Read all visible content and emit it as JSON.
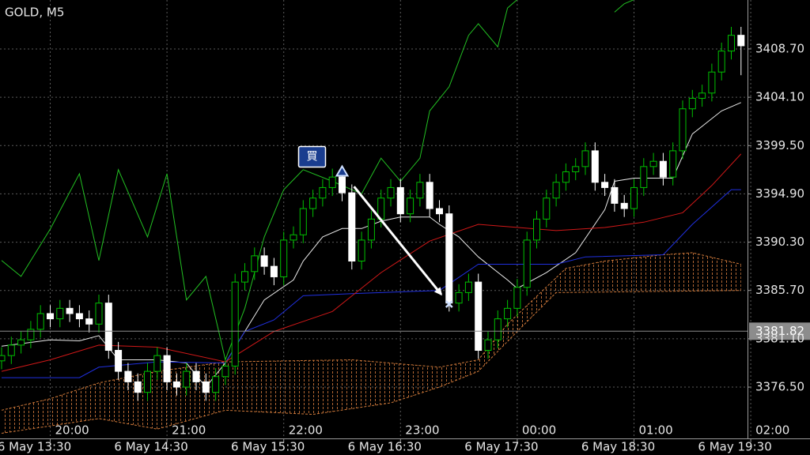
{
  "chart_data": {
    "type": "candlestick",
    "title": "GOLD, M5",
    "up_color": "#00c000",
    "down_color": "#ffffff",
    "background": "#000000",
    "grid": true,
    "ylim": [
      3372.14,
      3413.36
    ],
    "yticks": [
      {
        "value": 3408.7,
        "label": "3408.70"
      },
      {
        "value": 3404.1,
        "label": "3404.10"
      },
      {
        "value": 3399.5,
        "label": "3399.50"
      },
      {
        "value": 3394.9,
        "label": "3394.90"
      },
      {
        "value": 3390.3,
        "label": "3390.30"
      },
      {
        "value": 3385.7,
        "label": "3385.70"
      },
      {
        "value": 3381.1,
        "label": "3381.10"
      },
      {
        "value": 3376.5,
        "label": "3376.50"
      }
    ],
    "xlim": [
      0,
      76
    ],
    "xticks": [
      {
        "value": 5,
        "time": "20:00",
        "date": "6 May 13:30"
      },
      {
        "value": 17,
        "time": "21:00",
        "date": "6 May 14:30"
      },
      {
        "value": 29,
        "time": "22:00",
        "date": "6 May 15:30"
      },
      {
        "value": 41,
        "time": "23:00",
        "date": "6 May 16:30"
      },
      {
        "value": 53,
        "time": "00:00",
        "date": "6 May 17:30"
      },
      {
        "value": 65,
        "time": "01:00",
        "date": "6 May 18:30"
      },
      {
        "value": 77,
        "time": "02:00",
        "date": "6 May 19:30"
      }
    ],
    "open": [
      3379,
      3379.5,
      3380.5,
      3381,
      3382,
      3383.5,
      3383,
      3384,
      3383.5,
      3383,
      3382.5,
      3384.5,
      3380,
      3378,
      3377,
      3376,
      3378,
      3379.5,
      3377,
      3376.5,
      3378,
      3377,
      3376,
      3377.5,
      3378.5,
      3386.5,
      3387.5,
      3389,
      3388,
      3387,
      3390.5,
      3391,
      3393.5,
      3394.5,
      3395.5,
      3396.5,
      3395,
      3388.5,
      3390.5,
      3392.5,
      3394.5,
      3395.5,
      3393,
      3394.5,
      3396,
      3393.5,
      3393,
      3384.5,
      3385.5,
      3386.5,
      3380,
      3381,
      3383,
      3384,
      3386,
      3390.5,
      3392.5,
      3394.5,
      3396,
      3397,
      3397.5,
      3399,
      3396,
      3395.5,
      3394,
      3393.5,
      3395.5,
      3397.5,
      3398,
      3396.5,
      3399,
      3403,
      3404,
      3404.5,
      3406.5,
      3408.5,
      3410
    ],
    "high": [
      3380.3,
      3381.3,
      3381.8,
      3382.8,
      3384.3,
      3384.3,
      3384.8,
      3384.8,
      3384.3,
      3383.8,
      3385.3,
      3385.3,
      3380.8,
      3378.8,
      3377.8,
      3378.8,
      3380.3,
      3380.3,
      3377.8,
      3378.8,
      3378.8,
      3377.8,
      3378.3,
      3379.3,
      3387.3,
      3388.3,
      3389.8,
      3389.8,
      3388.8,
      3391.3,
      3391.8,
      3394.3,
      3395.3,
      3396.3,
      3397.3,
      3397.3,
      3395.8,
      3391.3,
      3393.3,
      3395.3,
      3396.3,
      3396.3,
      3395.3,
      3396.8,
      3396.8,
      3394.3,
      3393.8,
      3386.3,
      3387.3,
      3387.3,
      3381.8,
      3383.8,
      3384.8,
      3386.8,
      3391.3,
      3393.3,
      3395.3,
      3396.8,
      3397.8,
      3398.3,
      3399.8,
      3399.8,
      3396.8,
      3396.3,
      3394.8,
      3396.3,
      3398.3,
      3398.8,
      3398.8,
      3399.8,
      3403.8,
      3404.8,
      3405.3,
      3407.3,
      3409.3,
      3410.8,
      3410.8
    ],
    "low": [
      3378.2,
      3378.7,
      3379.7,
      3380.2,
      3381.2,
      3382.2,
      3382.2,
      3382.7,
      3382.2,
      3381.7,
      3381.7,
      3379.2,
      3377.2,
      3376.2,
      3375.2,
      3375.2,
      3377.2,
      3376.2,
      3375.7,
      3375.7,
      3376.2,
      3375.2,
      3375.2,
      3376.7,
      3377.7,
      3385.7,
      3386.7,
      3387.2,
      3386.2,
      3386.2,
      3389.7,
      3390.2,
      3392.7,
      3393.7,
      3394.7,
      3394.2,
      3387.7,
      3387.7,
      3389.7,
      3391.7,
      3393.7,
      3392.2,
      3392.2,
      3393.7,
      3392.7,
      3392.2,
      3383.7,
      3383.7,
      3384.7,
      3379.2,
      3379.2,
      3380.2,
      3382.2,
      3383.2,
      3385.2,
      3389.7,
      3391.7,
      3393.7,
      3395.2,
      3396.2,
      3396.7,
      3395.2,
      3394.7,
      3393.2,
      3392.7,
      3392.7,
      3394.7,
      3396.7,
      3395.7,
      3395.7,
      3398.2,
      3402.2,
      3403.2,
      3403.7,
      3405.7,
      3407.7,
      3406.2
    ],
    "close": [
      3379.5,
      3380.5,
      3381,
      3382,
      3383.5,
      3383,
      3384,
      3383.5,
      3383,
      3382.5,
      3384.5,
      3380,
      3378,
      3377,
      3376,
      3378,
      3379.5,
      3377,
      3376.5,
      3378,
      3377,
      3376,
      3377.5,
      3378.5,
      3386.5,
      3387.5,
      3389,
      3388,
      3387,
      3390.5,
      3391,
      3393.5,
      3394.5,
      3395.5,
      3396.5,
      3395,
      3388.5,
      3390.5,
      3392.5,
      3394.5,
      3395.5,
      3393,
      3394.5,
      3396,
      3393.5,
      3393,
      3384.5,
      3385.5,
      3386.5,
      3380,
      3381,
      3383,
      3384,
      3386,
      3390.5,
      3392.5,
      3394.5,
      3396,
      3397,
      3397.5,
      3399,
      3396,
      3395.5,
      3394,
      3393.5,
      3395.5,
      3397.5,
      3398,
      3396.5,
      3399,
      3403,
      3404,
      3404.5,
      3406.5,
      3408.5,
      3410,
      3409
    ],
    "lines": [
      {
        "color": "#22c022",
        "x": [
          0,
          2,
          5,
          8,
          10,
          12,
          15,
          17,
          19,
          21,
          23,
          25,
          27,
          29,
          31,
          34,
          37,
          39,
          41,
          43,
          44,
          46,
          48,
          49,
          51,
          52,
          53,
          58,
          63,
          64,
          65
        ],
        "values": [
          3388.55,
          3387.04,
          3391.55,
          3396.82,
          3388.55,
          3397.2,
          3390.8,
          3396.82,
          3384.8,
          3387.04,
          3379.1,
          3384.0,
          3390.8,
          3395.3,
          3397.2,
          3396.1,
          3394.9,
          3398.3,
          3396.1,
          3398.3,
          3402.8,
          3405.1,
          3410.0,
          3411.1,
          3408.9,
          3412.6,
          3413.4,
          null,
          3412.2,
          3413.0,
          3413.4
        ]
      },
      {
        "color": "#e8e8e8",
        "x": [
          0,
          5,
          8,
          10,
          12,
          16,
          19,
          21,
          23,
          25,
          27,
          30,
          31,
          33,
          35,
          37,
          39,
          41,
          44,
          45,
          47,
          49,
          52,
          53,
          56,
          59,
          62,
          63,
          65,
          69,
          71,
          74,
          76
        ],
        "values": [
          3380.4,
          3381.0,
          3380.9,
          3381.4,
          3379.1,
          3379.1,
          3378.8,
          3376.5,
          3378.8,
          3381.8,
          3384.8,
          3386.7,
          3388.5,
          3390.8,
          3391.6,
          3391.6,
          3392.3,
          3392.7,
          3392.7,
          3392.0,
          3390.8,
          3388.9,
          3386.7,
          3385.9,
          3387.4,
          3389.3,
          3393.4,
          3396.1,
          3396.4,
          3396.4,
          3400.6,
          3402.8,
          3403.6
        ]
      },
      {
        "color": "#2030e0",
        "x": [
          0,
          8,
          10,
          16,
          23,
          25,
          28,
          31,
          36,
          45,
          49,
          57,
          60,
          68,
          71,
          75,
          76
        ],
        "values": [
          3377.4,
          3377.4,
          3378.4,
          3378.9,
          3378.8,
          3381.8,
          3382.9,
          3385.2,
          3385.4,
          3385.7,
          3388.2,
          3388.2,
          3388.9,
          3389.1,
          3392.0,
          3395.3,
          3395.3
        ]
      },
      {
        "color": "#d01818",
        "x": [
          0,
          5,
          10,
          16,
          23,
          28,
          34,
          39,
          44,
          49,
          57,
          62,
          66,
          70,
          73,
          76
        ],
        "values": [
          3378.0,
          3379.1,
          3380.5,
          3380.3,
          3378.9,
          3381.8,
          3383.7,
          3387.4,
          3390.4,
          3392.0,
          3391.4,
          3391.7,
          3392.2,
          3393.1,
          3395.7,
          3398.7
        ]
      }
    ],
    "cloud": {
      "color": "#d07a3a",
      "upper": {
        "x": [
          0,
          5,
          10,
          16,
          23,
          36,
          45,
          49,
          52,
          58,
          62,
          68,
          71,
          76
        ],
        "values": [
          3374.3,
          3375.4,
          3376.9,
          3378.0,
          3378.9,
          3379.1,
          3378.4,
          3379.1,
          3382.5,
          3387.8,
          3388.5,
          3389.1,
          3389.3,
          3388.2
        ]
      },
      "lower": {
        "x": [
          0,
          10,
          16,
          23,
          32,
          40,
          45,
          49,
          53,
          57,
          76
        ],
        "values": [
          3372.1,
          3373.5,
          3372.5,
          3374.3,
          3373.9,
          3375.0,
          3376.5,
          3378.0,
          3381.8,
          3385.5,
          3385.7
        ]
      }
    },
    "last_price": 3381.82,
    "trade": {
      "label": "買",
      "entry_index": 35,
      "entry_price": 3397,
      "exit_index": 46,
      "exit_price": 3384.4
    }
  }
}
